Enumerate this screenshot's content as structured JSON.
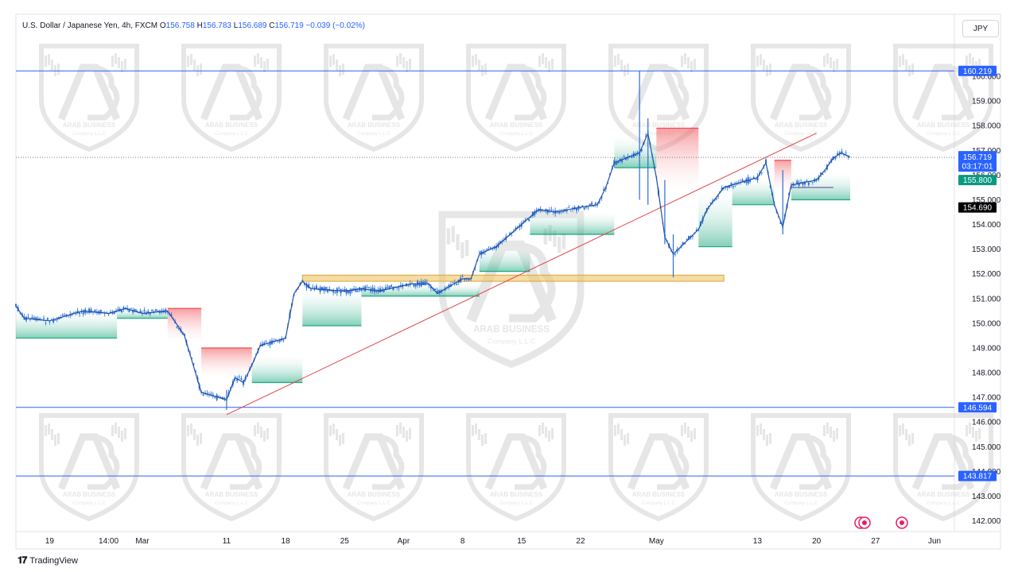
{
  "header": {
    "symbol": "U.S. Dollar / Japanese Yen, 4h, FXCM",
    "o_label": "O",
    "o": "156.758",
    "h_label": "H",
    "h": "156.783",
    "l_label": "L",
    "l": "156.689",
    "c_label": "C",
    "c": "156.719",
    "change": "−0.039 (−0.02%)"
  },
  "currency_button": "JPY",
  "footer": {
    "brand": "TradingView"
  },
  "colors": {
    "candle": "#2a6fd6",
    "hline": "#2962ff",
    "trendline": "#e0444b",
    "zone": "#f0c462",
    "cloud_up": "#1ea880",
    "cloud_down": "#ef4f55",
    "watermark": "#cfcfcf"
  },
  "icons": [
    "tradingview-logo-icon",
    "alert-icon",
    "event-icon"
  ],
  "chart_data": {
    "type": "candlestick",
    "instrument": "USDJPY",
    "timeframe": "4h",
    "y_range": [
      141.6,
      161.0
    ],
    "x_range": [
      "2024-02-15",
      "2024-06-03"
    ],
    "y_ticks": [
      142,
      143,
      144,
      145,
      146,
      147,
      148,
      149,
      150,
      151,
      152,
      153,
      154,
      155,
      156,
      157,
      158,
      159,
      160
    ],
    "y_tick_labels": [
      "142.000",
      "143.000",
      "144.000",
      "145.000",
      "146.000",
      "147.000",
      "148.000",
      "149.000",
      "150.000",
      "151.000",
      "152.000",
      "153.000",
      "154.000",
      "155.000",
      "156.000",
      "157.000",
      "158.000",
      "159.000",
      "160.000"
    ],
    "x_ticks": [
      {
        "date": "2024-02-19",
        "label": "19"
      },
      {
        "date": "2024-02-26",
        "label": "14:00"
      },
      {
        "date": "2024-03-01",
        "label": "Mar"
      },
      {
        "date": "2024-03-11",
        "label": "11"
      },
      {
        "date": "2024-03-18",
        "label": "18"
      },
      {
        "date": "2024-03-25",
        "label": "25"
      },
      {
        "date": "2024-04-01",
        "label": "Apr"
      },
      {
        "date": "2024-04-08",
        "label": "8"
      },
      {
        "date": "2024-04-15",
        "label": "15"
      },
      {
        "date": "2024-04-22",
        "label": "22"
      },
      {
        "date": "2024-05-01",
        "label": "May"
      },
      {
        "date": "2024-05-13",
        "label": "13"
      },
      {
        "date": "2024-05-20",
        "label": "20"
      },
      {
        "date": "2024-05-27",
        "label": "27"
      },
      {
        "date": "2024-06-03",
        "label": "Jun"
      }
    ],
    "price_path": [
      [
        "2024-02-15",
        150.7
      ],
      [
        "2024-02-16",
        150.2
      ],
      [
        "2024-02-19",
        150.1
      ],
      [
        "2024-02-21",
        150.3
      ],
      [
        "2024-02-23",
        150.5
      ],
      [
        "2024-02-26",
        150.4
      ],
      [
        "2024-02-28",
        150.6
      ],
      [
        "2024-03-01",
        150.4
      ],
      [
        "2024-03-04",
        150.5
      ],
      [
        "2024-03-06",
        149.5
      ],
      [
        "2024-03-08",
        147.2
      ],
      [
        "2024-03-11",
        146.9
      ],
      [
        "2024-03-12",
        147.8
      ],
      [
        "2024-03-13",
        147.6
      ],
      [
        "2024-03-14",
        148.3
      ],
      [
        "2024-03-15",
        149.1
      ],
      [
        "2024-03-18",
        149.4
      ],
      [
        "2024-03-19",
        151.2
      ],
      [
        "2024-03-20",
        151.7
      ],
      [
        "2024-03-21",
        151.4
      ],
      [
        "2024-03-25",
        151.3
      ],
      [
        "2024-03-27",
        151.4
      ],
      [
        "2024-03-29",
        151.3
      ],
      [
        "2024-04-02",
        151.6
      ],
      [
        "2024-04-04",
        151.6
      ],
      [
        "2024-04-05",
        151.2
      ],
      [
        "2024-04-08",
        151.8
      ],
      [
        "2024-04-09",
        151.8
      ],
      [
        "2024-04-10",
        152.8
      ],
      [
        "2024-04-12",
        153.1
      ],
      [
        "2024-04-15",
        154.0
      ],
      [
        "2024-04-17",
        154.6
      ],
      [
        "2024-04-19",
        154.5
      ],
      [
        "2024-04-22",
        154.7
      ],
      [
        "2024-04-24",
        154.8
      ],
      [
        "2024-04-25",
        155.5
      ],
      [
        "2024-04-26",
        156.5
      ],
      [
        "2024-04-29",
        156.9
      ],
      [
        "2024-04-30",
        157.7
      ],
      [
        "2024-05-01",
        155.9
      ],
      [
        "2024-05-02",
        153.5
      ],
      [
        "2024-05-03",
        152.8
      ],
      [
        "2024-05-06",
        153.8
      ],
      [
        "2024-05-07",
        154.6
      ],
      [
        "2024-05-09",
        155.5
      ],
      [
        "2024-05-13",
        155.9
      ],
      [
        "2024-05-14",
        156.5
      ],
      [
        "2024-05-15",
        154.8
      ],
      [
        "2024-05-16",
        153.9
      ],
      [
        "2024-05-17",
        155.6
      ],
      [
        "2024-05-20",
        155.8
      ],
      [
        "2024-05-21",
        156.2
      ],
      [
        "2024-05-22",
        156.7
      ],
      [
        "2024-05-23",
        156.9
      ],
      [
        "2024-05-24",
        156.72
      ]
    ],
    "spikes": [
      {
        "date": "2024-04-29",
        "high": 160.219,
        "low": 155.0
      },
      {
        "date": "2024-04-30",
        "high": 158.3,
        "low": 154.8
      },
      {
        "date": "2024-05-02",
        "high": 155.8,
        "low": 153.2
      },
      {
        "date": "2024-05-03",
        "high": 153.6,
        "low": 151.86
      },
      {
        "date": "2024-03-11",
        "high": 147.3,
        "low": 146.49
      },
      {
        "date": "2024-05-16",
        "high": 156.2,
        "low": 153.6
      }
    ],
    "cloud": [
      {
        "from": "2024-02-15",
        "to": "2024-02-27",
        "top": 150.5,
        "bottom": 149.4,
        "dir": "up"
      },
      {
        "from": "2024-02-27",
        "to": "2024-03-04",
        "top": 150.6,
        "bottom": 150.2,
        "dir": "up"
      },
      {
        "from": "2024-03-04",
        "to": "2024-03-08",
        "top": 150.6,
        "bottom": 149.2,
        "dir": "down"
      },
      {
        "from": "2024-03-08",
        "to": "2024-03-14",
        "top": 149.0,
        "bottom": 147.8,
        "dir": "down"
      },
      {
        "from": "2024-03-14",
        "to": "2024-03-20",
        "top": 148.7,
        "bottom": 147.6,
        "dir": "up"
      },
      {
        "from": "2024-03-20",
        "to": "2024-03-27",
        "top": 151.4,
        "bottom": 149.9,
        "dir": "up"
      },
      {
        "from": "2024-03-27",
        "to": "2024-04-10",
        "top": 151.6,
        "bottom": 151.1,
        "dir": "up"
      },
      {
        "from": "2024-04-10",
        "to": "2024-04-16",
        "top": 153.1,
        "bottom": 152.1,
        "dir": "up"
      },
      {
        "from": "2024-04-16",
        "to": "2024-04-26",
        "top": 154.5,
        "bottom": 153.6,
        "dir": "up"
      },
      {
        "from": "2024-04-26",
        "to": "2024-05-01",
        "top": 157.6,
        "bottom": 156.3,
        "dir": "up"
      },
      {
        "from": "2024-05-01",
        "to": "2024-05-06",
        "top": 157.9,
        "bottom": 155.3,
        "dir": "down"
      },
      {
        "from": "2024-05-06",
        "to": "2024-05-10",
        "top": 155.4,
        "bottom": 153.1,
        "dir": "up"
      },
      {
        "from": "2024-05-10",
        "to": "2024-05-15",
        "top": 155.9,
        "bottom": 154.8,
        "dir": "up"
      },
      {
        "from": "2024-05-15",
        "to": "2024-05-17",
        "top": 156.6,
        "bottom": 155.3,
        "dir": "down"
      },
      {
        "from": "2024-05-17",
        "to": "2024-05-24",
        "top": 156.1,
        "bottom": 155.0,
        "dir": "up"
      }
    ],
    "horizontal_lines": [
      {
        "price": 160.219,
        "label": "160.219"
      },
      {
        "price": 146.594,
        "label": "146.594"
      },
      {
        "price": 143.817,
        "label": "143.817"
      }
    ],
    "current_price": {
      "price": 156.719,
      "label": "156.719",
      "countdown": "03:17:01"
    },
    "price_labels": [
      {
        "price": 155.8,
        "label": "155.800",
        "color": "#089981"
      },
      {
        "price": 154.69,
        "label": "154.690",
        "color": "#000000"
      }
    ],
    "trendline": {
      "from": [
        "2024-03-11",
        146.3
      ],
      "to": [
        "2024-05-20",
        157.7
      ]
    },
    "zone": {
      "from": "2024-03-20",
      "to": "2024-05-09",
      "top": 151.95,
      "bottom": 151.7
    },
    "short_line": {
      "from": "2024-05-17",
      "to": "2024-05-22",
      "price": 155.5
    },
    "watermark_text": [
      "ARAB BUSINESS",
      "Company L.L.C"
    ],
    "watermark_large_text": [
      "ARAB BUSINESS",
      "Company L.L.C"
    ]
  }
}
